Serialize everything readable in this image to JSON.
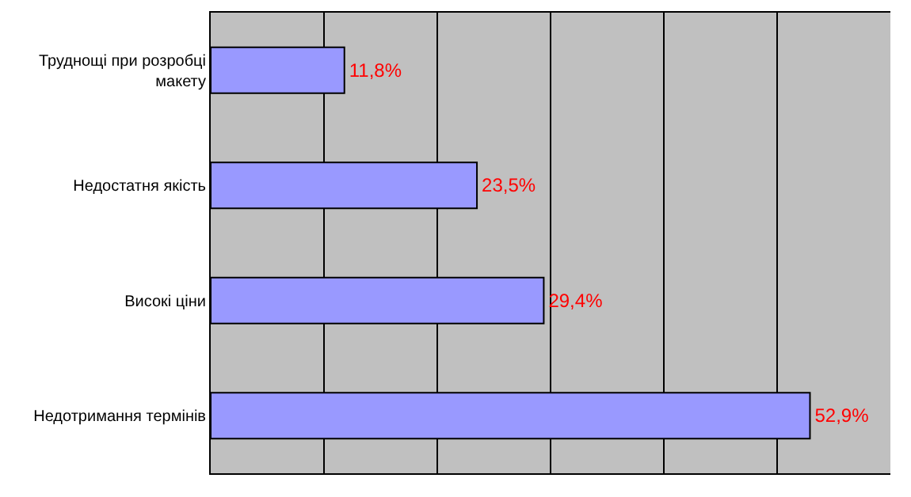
{
  "chart_data": {
    "type": "bar",
    "orientation": "horizontal",
    "categories": [
      "Труднощі при розробці макету",
      "Недостатня якість",
      "Високі ціни",
      "Недотримання термінів"
    ],
    "values": [
      11.8,
      23.5,
      29.4,
      52.9
    ],
    "color": "#9999ff",
    "value_labels": [
      "11,8%",
      "23,5%",
      "29,4%",
      "52,9%"
    ],
    "xlim": [
      0,
      60
    ],
    "xticks": [
      {
        "value": 0,
        "label": null
      },
      {
        "value": 10,
        "label": null
      },
      {
        "value": 20,
        "label": null
      },
      {
        "value": 30,
        "label": null
      },
      {
        "value": 40,
        "label": null
      },
      {
        "value": 50,
        "label": null
      },
      {
        "value": 60,
        "label": null
      }
    ],
    "grid": "x",
    "tick_labels": "y"
  }
}
